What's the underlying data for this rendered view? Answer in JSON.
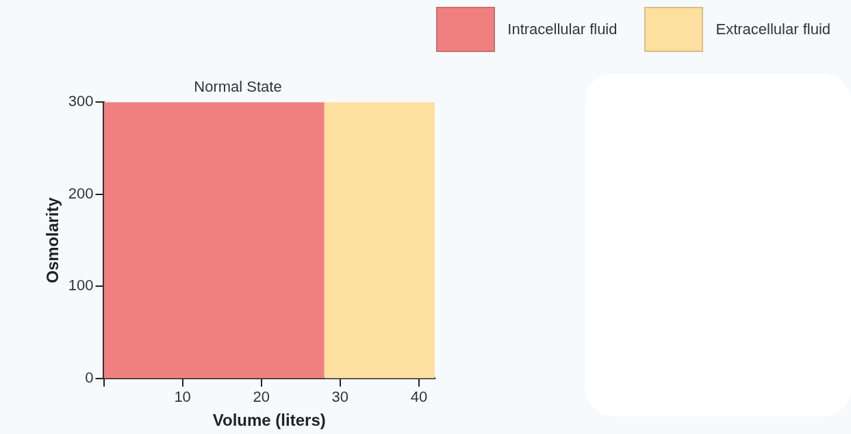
{
  "chart_data": {
    "type": "area",
    "title": "Normal State",
    "xlabel": "Volume (liters)",
    "ylabel": "Osmolarity",
    "series": [
      {
        "name": "Intracellular fluid",
        "color": "#f08080",
        "x": [
          0,
          28
        ],
        "values": [
          300,
          300
        ]
      },
      {
        "name": "Extracellular fluid",
        "color": "#fde0a0",
        "x": [
          28,
          42
        ],
        "values": [
          300,
          300
        ]
      }
    ],
    "xlim": [
      0,
      42
    ],
    "xticks": [
      {
        "value": 0,
        "label": null
      },
      10,
      20,
      30,
      40
    ],
    "ylim": [
      0,
      300
    ],
    "yticks": [
      0,
      100,
      200,
      300
    ],
    "grid": false,
    "legend": "top right"
  }
}
